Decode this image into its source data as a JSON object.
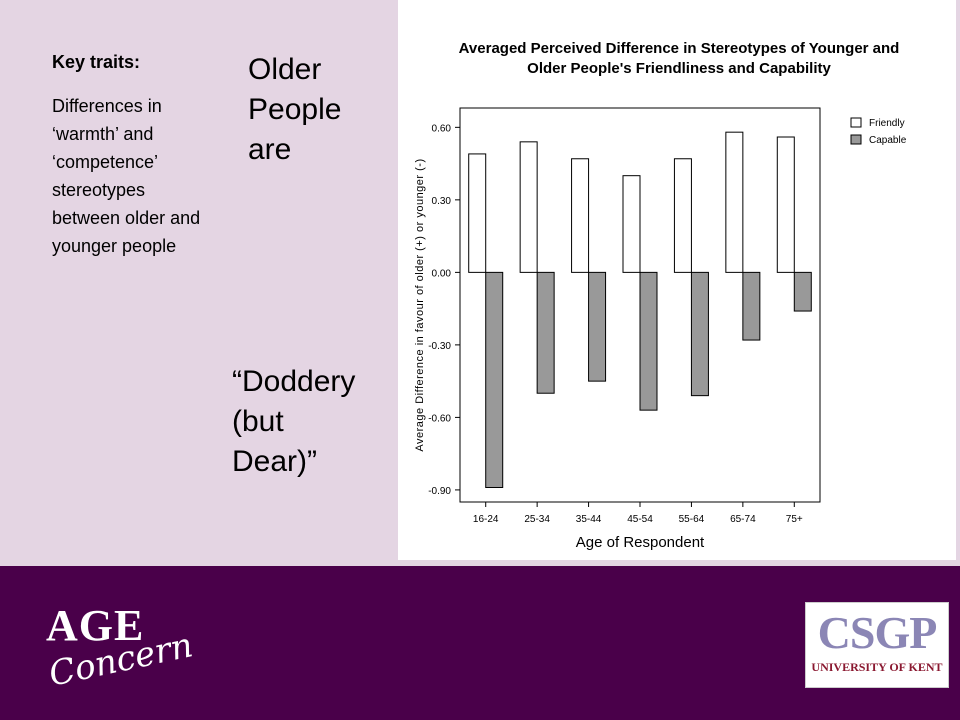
{
  "slide": {
    "key_traits_title": "Key traits:",
    "key_traits_text": "Differences in ‘warmth’ and ‘competence’ stereotypes between older and younger people",
    "headline": "Older People are",
    "quote": "“Doddery (but Dear)”"
  },
  "logos": {
    "age_concern_top": "AGE",
    "age_concern_bottom": "Concern",
    "csgp": "CSGP",
    "csgp_university": "UNIVERSITY OF KENT"
  },
  "colors": {
    "background": "#e4d5e3",
    "band": "#4a004a",
    "friendly_fill": "#ffffff",
    "capable_fill": "#999999"
  },
  "chart_data": {
    "type": "bar",
    "title_lines": [
      "Averaged Perceived Difference in Stereotypes of Younger and",
      "Older People's Friendliness and Capability"
    ],
    "xlabel": "Age of Respondent",
    "ylabel": "Average Difference in favour of older (+) or younger (-)",
    "categories": [
      "16-24",
      "25-34",
      "35-44",
      "45-54",
      "55-64",
      "65-74",
      "75+"
    ],
    "yticks": [
      "0.60",
      "0.30",
      "0.00",
      "-0.30",
      "-0.60",
      "-0.90"
    ],
    "ytick_values": [
      0.6,
      0.3,
      0.0,
      -0.3,
      -0.6,
      -0.9
    ],
    "ylim": [
      -0.95,
      0.68
    ],
    "series": [
      {
        "name": "Friendly",
        "values": [
          0.49,
          0.54,
          0.47,
          0.4,
          0.47,
          0.58,
          0.56
        ]
      },
      {
        "name": "Capable",
        "values": [
          -0.89,
          -0.5,
          -0.45,
          -0.57,
          -0.51,
          -0.28,
          -0.16
        ]
      }
    ],
    "legend": "top-right",
    "grid": false
  }
}
